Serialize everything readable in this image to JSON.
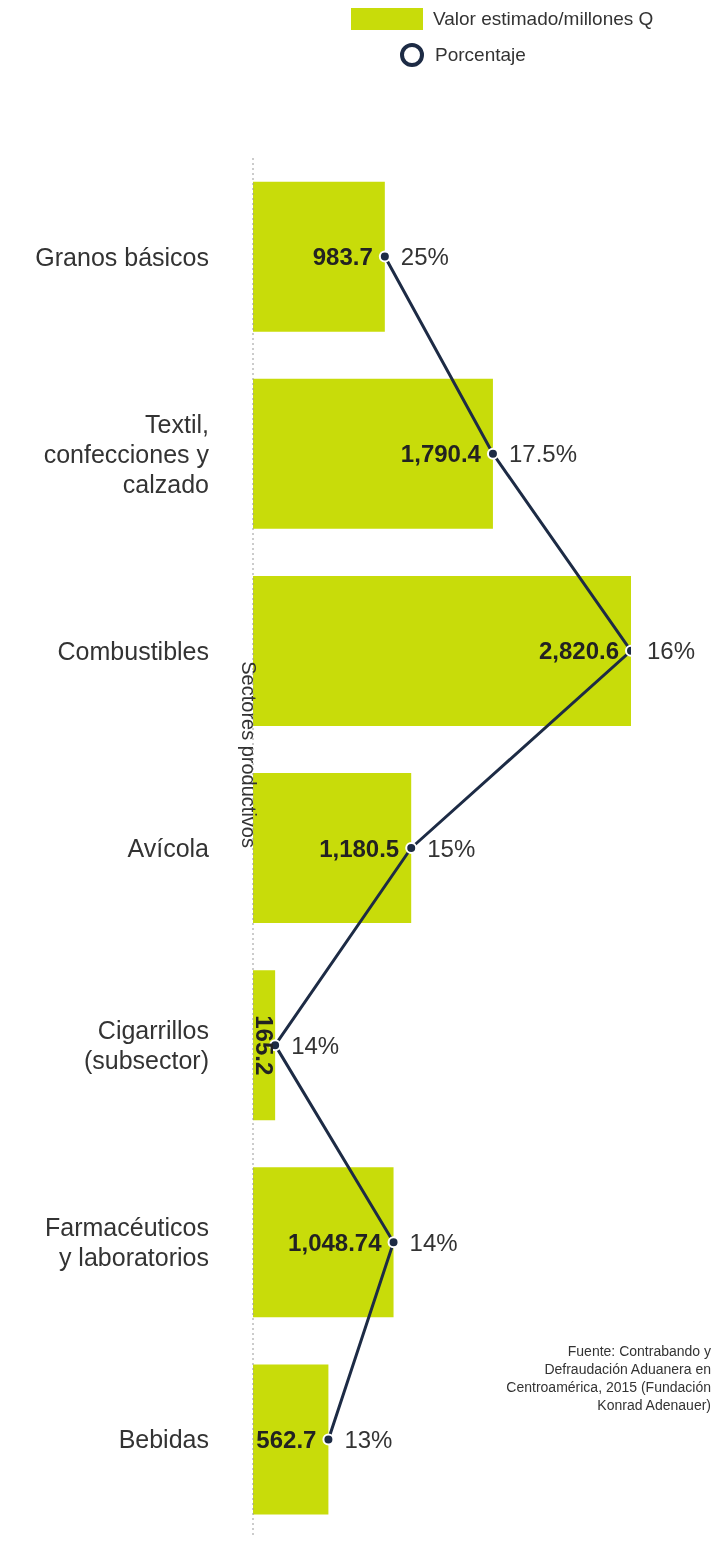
{
  "chart_data": {
    "type": "bar",
    "orientation": "horizontal",
    "ylabel": "Sectores productivos",
    "categories": [
      "Granos básicos",
      "Textil, confecciones y calzado",
      "Combustibles",
      "Avícola",
      "Cigarrillos (subsector)",
      "Farmacéuticos y laboratorios",
      "Bebidas"
    ],
    "series": [
      {
        "name": "Valor estimado/millones Q",
        "color": "#c8dc0a",
        "values": [
          983.7,
          1790.4,
          2820.6,
          1180.5,
          165.2,
          1048.74,
          562.7
        ],
        "value_labels": [
          "983.7",
          "1,790.4",
          "2,820.6",
          "1,180.5",
          "165.2",
          "1,048.74",
          "562.7"
        ]
      },
      {
        "name": "Porcentaje",
        "type": "line",
        "color": "#1d2b45",
        "values": [
          983.7,
          1790.4,
          2820.6,
          1180.5,
          165.2,
          1048.74,
          562.7
        ]
      }
    ],
    "legend": "top right",
    "marker": "circle",
    "line_style": "solid",
    "annotations": [
      {
        "text": "25%",
        "x": 983.7,
        "y": "Granos básicos"
      },
      {
        "text": "17.5%",
        "x": 1790.4,
        "y": "Textil, confecciones y calzado"
      },
      {
        "text": "16%",
        "x": 2820.6,
        "y": "Combustibles"
      },
      {
        "text": "15%",
        "x": 1180.5,
        "y": "Avícola"
      },
      {
        "text": "14%",
        "x": 165.2,
        "y": "Cigarrillos (subsector)"
      },
      {
        "text": "14%",
        "x": 1048.74,
        "y": "Farmacéuticos y laboratorios"
      },
      {
        "text": "13%",
        "x": 562.7,
        "y": "Bebidas"
      },
      "Fuente: Contrabando y Defraudación Aduanera en Centroamérica, 2015 (Fundación Konrad Adenauer)"
    ]
  }
}
